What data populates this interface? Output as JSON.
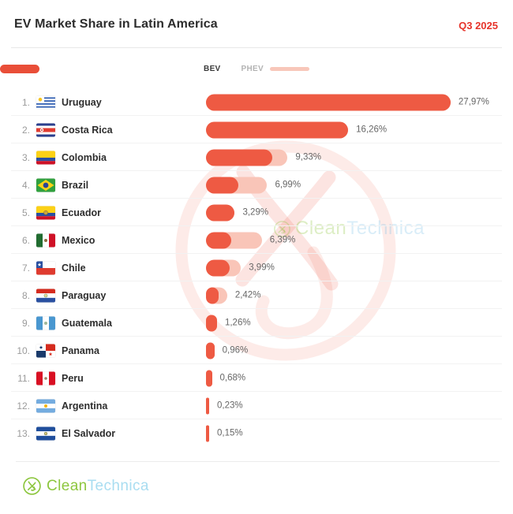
{
  "header": {
    "title": "EV Market Share in Latin America",
    "period": "Q3 2025"
  },
  "legend": {
    "bev_label": "BEV",
    "phev_label": "PHEV"
  },
  "colors": {
    "bev": "#ee5a43",
    "phev": "#f9c5b8",
    "period_red": "#e6332a",
    "brand_green": "#8dc63f",
    "brand_blue": "#a9ddf1"
  },
  "chart_data": {
    "type": "bar",
    "orientation": "horizontal",
    "unit": "%",
    "title": "EV Market Share in Latin America",
    "subtitle": "Q3 2025",
    "series_names": [
      "BEV",
      "PHEV"
    ],
    "legend_position": "top-center",
    "grid": false,
    "xlim": [
      0,
      28
    ],
    "rows": [
      {
        "rank": "1.",
        "country": "Uruguay",
        "flag": "flag-uruguay",
        "total_label": "27,97%",
        "total": 27.97,
        "bev": 27.97,
        "phev": 0
      },
      {
        "rank": "2.",
        "country": "Costa Rica",
        "flag": "flag-costa-rica",
        "total_label": "16,26%",
        "total": 16.26,
        "bev": 16.26,
        "phev": 0
      },
      {
        "rank": "3.",
        "country": "Colombia",
        "flag": "flag-colombia",
        "total_label": "9,33%",
        "total": 9.33,
        "bev": 7.6,
        "phev": 1.73
      },
      {
        "rank": "4.",
        "country": "Brazil",
        "flag": "flag-brazil",
        "total_label": "6,99%",
        "total": 6.99,
        "bev": 3.7,
        "phev": 3.29
      },
      {
        "rank": "5.",
        "country": "Ecuador",
        "flag": "flag-ecuador",
        "total_label": "3,29%",
        "total": 3.29,
        "bev": 3.29,
        "phev": 0
      },
      {
        "rank": "6.",
        "country": "Mexico",
        "flag": "flag-mexico",
        "total_label": "6,39%",
        "total": 6.39,
        "bev": 2.9,
        "phev": 3.49
      },
      {
        "rank": "7.",
        "country": "Chile",
        "flag": "flag-chile",
        "total_label": "3,99%",
        "total": 3.99,
        "bev": 2.7,
        "phev": 1.29
      },
      {
        "rank": "8.",
        "country": "Paraguay",
        "flag": "flag-paraguay",
        "total_label": "2,42%",
        "total": 2.42,
        "bev": 1.45,
        "phev": 0.97
      },
      {
        "rank": "9.",
        "country": "Guatemala",
        "flag": "flag-guatemala",
        "total_label": "1,26%",
        "total": 1.26,
        "bev": 1.26,
        "phev": 0
      },
      {
        "rank": "10.",
        "country": "Panama",
        "flag": "flag-panama",
        "total_label": "0,96%",
        "total": 0.96,
        "bev": 0.96,
        "phev": 0
      },
      {
        "rank": "11.",
        "country": "Peru",
        "flag": "flag-peru",
        "total_label": "0,68%",
        "total": 0.68,
        "bev": 0.68,
        "phev": 0
      },
      {
        "rank": "12.",
        "country": "Argentina",
        "flag": "flag-argentina",
        "total_label": "0,23%",
        "total": 0.23,
        "bev": 0.23,
        "phev": 0
      },
      {
        "rank": "13.",
        "country": "El Salvador",
        "flag": "flag-el-salvador",
        "total_label": "0,15%",
        "total": 0.15,
        "bev": 0.15,
        "phev": 0
      }
    ]
  },
  "watermark": {
    "brand_clean": "Clean",
    "brand_technica": "Technica"
  },
  "footer": {
    "brand_clean": "Clean",
    "brand_technica": "Technica"
  }
}
